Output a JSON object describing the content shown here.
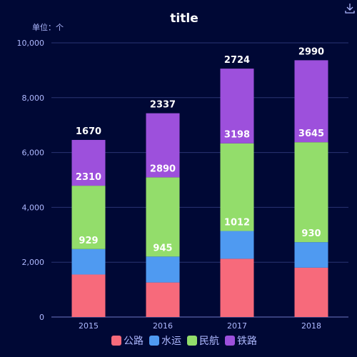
{
  "chart_data": {
    "type": "bar",
    "stacked": true,
    "title": "title",
    "unit_label": "单位：个",
    "categories": [
      "2015",
      "2016",
      "2017",
      "2018"
    ],
    "series": [
      {
        "name": "公路",
        "values": [
          1550,
          1260,
          2125,
          1800
        ],
        "color": "#f76a7b",
        "show_labels": false
      },
      {
        "name": "水运",
        "values": [
          929,
          945,
          1012,
          930
        ],
        "color": "#4f9af1",
        "show_labels": true
      },
      {
        "name": "民航",
        "values": [
          2310,
          2890,
          3198,
          3645
        ],
        "color": "#93dd6b",
        "show_labels": true
      },
      {
        "name": "铁路",
        "values": [
          1670,
          2337,
          2724,
          2990
        ],
        "color": "#9d50dc",
        "show_labels": true
      }
    ],
    "ylim": [
      0,
      10000
    ],
    "yticks": [
      "0",
      "2,000",
      "4,000",
      "6,000",
      "8,000",
      "10,000"
    ],
    "grid": true,
    "legend_position": "bottom"
  },
  "icons": {
    "download": "download-icon"
  }
}
